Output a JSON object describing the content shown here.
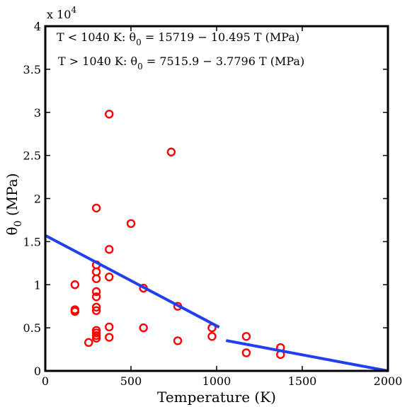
{
  "chart_data": {
    "type": "scatter",
    "title": "",
    "xlabel": "Temperature (K)",
    "ylabel": "θ0 (MPa)",
    "ylabel_main": "θ",
    "ylabel_sub": "0",
    "ylabel_unit": " (MPa)",
    "xlim": [
      0,
      2000
    ],
    "ylim": [
      0,
      40000
    ],
    "y_multiplier_text": "x 10",
    "y_multiplier_exp": "4",
    "x_ticks": [
      0,
      500,
      1000,
      1500,
      2000
    ],
    "x_tick_labels": [
      "0",
      "500",
      "1000",
      "1500",
      "2000"
    ],
    "y_ticks": [
      0,
      5000,
      10000,
      15000,
      20000,
      25000,
      30000,
      35000,
      40000
    ],
    "y_tick_labels": [
      "0",
      "0.5",
      "1",
      "1.5",
      "2",
      "2.5",
      "3",
      "3.5",
      "4"
    ],
    "grid": false,
    "annotations": [
      {
        "before": "T < 1040 K: θ",
        "sub": "0",
        "after": " = 15719 − 10.495 T (MPa)"
      },
      {
        "before": "T > 1040 K: θ",
        "sub": "0",
        "after": " = 7515.9 − 3.7796 T (MPa)"
      }
    ],
    "series": [
      {
        "marker": "circle",
        "color": "#ff0000",
        "points": [
          [
            373,
            29800
          ],
          [
            735,
            25400
          ],
          [
            298,
            18900
          ],
          [
            500,
            17100
          ],
          [
            373,
            14100
          ],
          [
            298,
            12300
          ],
          [
            298,
            11500
          ],
          [
            373,
            10900
          ],
          [
            298,
            10700
          ],
          [
            173,
            10000
          ],
          [
            573,
            9600
          ],
          [
            298,
            9200
          ],
          [
            298,
            8600
          ],
          [
            773,
            7500
          ],
          [
            298,
            7400
          ],
          [
            173,
            7100
          ],
          [
            298,
            7000
          ],
          [
            173,
            6900
          ],
          [
            973,
            5000
          ],
          [
            373,
            5100
          ],
          [
            573,
            5000
          ],
          [
            298,
            4700
          ],
          [
            298,
            4400
          ],
          [
            298,
            4100
          ],
          [
            973,
            4000
          ],
          [
            1173,
            4000
          ],
          [
            373,
            3900
          ],
          [
            298,
            3800
          ],
          [
            773,
            3500
          ],
          [
            253,
            3300
          ],
          [
            1373,
            2700
          ],
          [
            1173,
            2100
          ],
          [
            1373,
            1900
          ]
        ]
      },
      {
        "marker": "line",
        "color": "#1f3ff0",
        "x": [
          0,
          1015
        ],
        "y": [
          15719,
          5066
        ]
      },
      {
        "marker": "line",
        "color": "#1f3ff0",
        "x": [
          1055,
          2000
        ],
        "y": [
          3528,
          0
        ]
      }
    ]
  }
}
